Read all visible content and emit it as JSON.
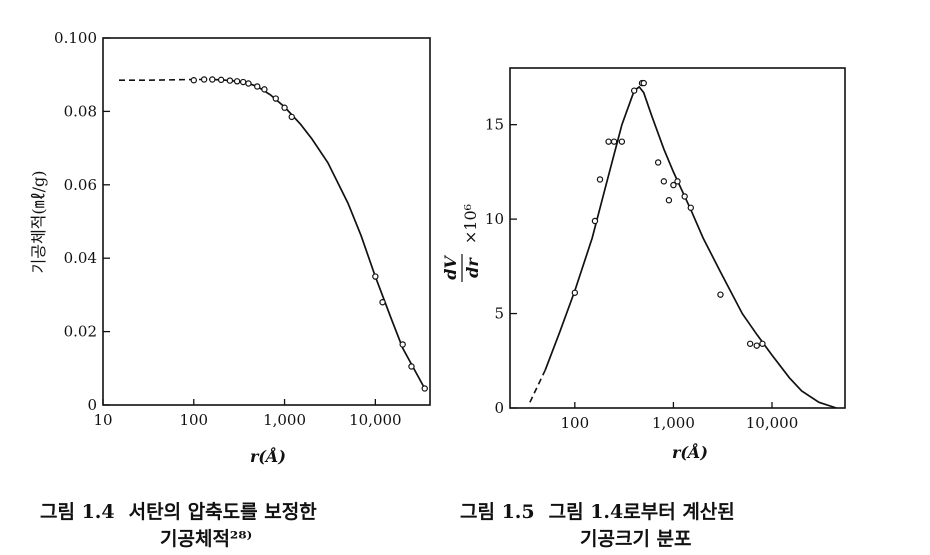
{
  "chart_data": [
    {
      "type": "line",
      "ylabel": "기공체적(㎖/g)",
      "xlabel": "r(Å)",
      "x_scale": "log",
      "xlim": [
        10,
        40000
      ],
      "ylim": [
        0,
        0.1
      ],
      "x_ticks": [
        "10",
        "100",
        "1,000",
        "10,000"
      ],
      "y_ticks": [
        "0",
        "0.02",
        "0.04",
        "0.06",
        "0.08",
        "0.100"
      ],
      "series": [
        {
          "x": [
            15,
            30,
            60,
            100,
            150,
            200,
            250,
            300,
            400,
            500,
            700,
            1000,
            1500,
            2000,
            3000,
            5000,
            7000,
            10000,
            15000,
            20000,
            30000,
            35000
          ],
          "y": [
            0.0885,
            0.0885,
            0.0886,
            0.0887,
            0.0887,
            0.0886,
            0.0884,
            0.0882,
            0.0876,
            0.0868,
            0.0845,
            0.0812,
            0.0765,
            0.0725,
            0.066,
            0.055,
            0.046,
            0.035,
            0.0235,
            0.0155,
            0.0075,
            0.0045
          ]
        }
      ],
      "points": {
        "x": [
          100,
          130,
          160,
          200,
          250,
          300,
          350,
          400,
          500,
          600,
          800,
          1000,
          1200,
          10000,
          12000,
          20000,
          25000,
          35000
        ],
        "y": [
          0.0885,
          0.0887,
          0.0887,
          0.0886,
          0.0884,
          0.0882,
          0.088,
          0.0876,
          0.0868,
          0.086,
          0.0835,
          0.081,
          0.0785,
          0.035,
          0.028,
          0.0165,
          0.0105,
          0.0045
        ]
      },
      "caption": {
        "number": "그림 1.4",
        "line1": "서탄의 압축도를 보정한",
        "line2": "기공체적²⁸⁾"
      }
    },
    {
      "type": "line",
      "ylabel_fraction": [
        "dV",
        "dr"
      ],
      "ylabel_factor": "×10⁶",
      "xlabel": "r(Å)",
      "x_scale": "log",
      "xlim": [
        22,
        55000
      ],
      "ylim": [
        0,
        18
      ],
      "x_ticks": [
        "100",
        "1,000",
        "10,000"
      ],
      "y_ticks": [
        "0",
        "5",
        "10",
        "15"
      ],
      "series": [
        {
          "x": [
            35,
            50,
            70,
            100,
            150,
            200,
            300,
            400,
            450,
            500,
            600,
            800,
            1000,
            1500,
            2000,
            3000,
            5000,
            7000,
            10000,
            15000,
            20000,
            30000,
            45000
          ],
          "y": [
            0.3,
            2.0,
            4.0,
            6.2,
            9.0,
            11.5,
            15.0,
            16.8,
            17.0,
            16.7,
            15.5,
            13.7,
            12.5,
            10.5,
            9.0,
            7.2,
            5.0,
            3.9,
            2.8,
            1.6,
            0.9,
            0.3,
            0.0
          ]
        }
      ],
      "points": {
        "x": [
          100,
          160,
          180,
          220,
          250,
          300,
          400,
          480,
          500,
          700,
          800,
          900,
          1000,
          1100,
          1300,
          1500,
          3000,
          6000,
          7000,
          8000
        ],
        "y": [
          6.1,
          9.9,
          12.1,
          14.1,
          14.1,
          14.1,
          16.8,
          17.2,
          17.2,
          13.0,
          12.0,
          11.0,
          11.8,
          12.0,
          11.2,
          10.6,
          6.0,
          3.4,
          3.3,
          3.4
        ]
      },
      "caption": {
        "number": "그림 1.5",
        "line1": "그림 1.4로부터 계산된",
        "line2": "기공크기 분포"
      }
    }
  ]
}
